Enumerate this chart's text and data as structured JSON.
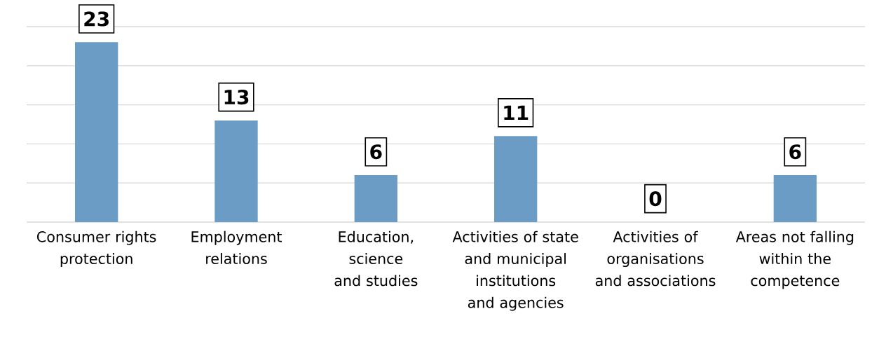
{
  "chart_data": {
    "type": "bar",
    "categories": [
      "Consumer rights protection",
      "Employment relations",
      "Education, science and studies",
      "Activities of state and municipal institutions and agencies",
      "Activities of organisations and associations",
      "Areas not falling within the competence"
    ],
    "values": [
      23,
      13,
      6,
      11,
      0,
      6
    ],
    "color": "#6a9cc6",
    "ylim": [
      0,
      25
    ],
    "yticks": [
      {
        "value": 0,
        "label": null
      },
      {
        "value": 5,
        "label": null
      },
      {
        "value": 10,
        "label": null
      },
      {
        "value": 15,
        "label": null
      },
      {
        "value": 20,
        "label": null
      },
      {
        "value": 25,
        "label": null
      }
    ],
    "grid": "y",
    "data_labels": true,
    "tick_labels": "x"
  }
}
